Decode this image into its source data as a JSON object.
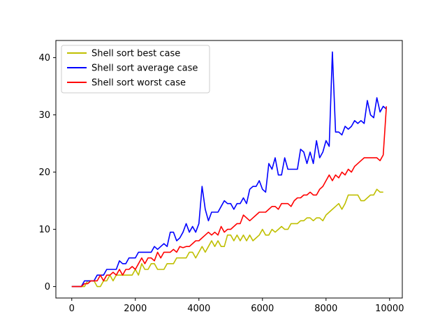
{
  "chart_data": {
    "type": "line",
    "title": "",
    "xlabel": "",
    "ylabel": "",
    "xlim": [
      -500,
      10400
    ],
    "ylim": [
      -2,
      43
    ],
    "grid": false,
    "legend_position": "top-left",
    "x_ticks": [
      0,
      2000,
      4000,
      6000,
      8000,
      10000
    ],
    "x_tick_labels": [
      "0",
      "2000",
      "4000",
      "6000",
      "8000",
      "10000"
    ],
    "y_ticks": [
      0,
      10,
      20,
      30,
      40
    ],
    "y_tick_labels": [
      "0",
      "10",
      "20",
      "30",
      "40"
    ],
    "series": [
      {
        "name": "Shell sort best case",
        "color": "#bfbf00",
        "points": [
          [
            0,
            0
          ],
          [
            400,
            0
          ],
          [
            500,
            1
          ],
          [
            700,
            1
          ],
          [
            800,
            0
          ],
          [
            900,
            0
          ],
          [
            1000,
            1
          ],
          [
            1100,
            1
          ],
          [
            1200,
            2
          ],
          [
            1300,
            1
          ],
          [
            1400,
            2
          ],
          [
            1900,
            2
          ],
          [
            2000,
            3
          ],
          [
            2100,
            2
          ],
          [
            2200,
            4
          ],
          [
            2300,
            3
          ],
          [
            2400,
            3
          ],
          [
            2500,
            4
          ],
          [
            2600,
            4
          ],
          [
            2700,
            3
          ],
          [
            2900,
            3
          ],
          [
            3000,
            4
          ],
          [
            3200,
            4
          ],
          [
            3300,
            5
          ],
          [
            3600,
            5
          ],
          [
            3700,
            6
          ],
          [
            3800,
            6
          ],
          [
            3900,
            5
          ],
          [
            4000,
            6
          ],
          [
            4100,
            7
          ],
          [
            4200,
            6
          ],
          [
            4300,
            7
          ],
          [
            4400,
            8
          ],
          [
            4500,
            7
          ],
          [
            4600,
            8
          ],
          [
            4700,
            7
          ],
          [
            4800,
            7
          ],
          [
            4900,
            9
          ],
          [
            5000,
            9
          ],
          [
            5100,
            8
          ],
          [
            5200,
            9
          ],
          [
            5300,
            8
          ],
          [
            5400,
            9
          ],
          [
            5500,
            8
          ],
          [
            5600,
            9
          ],
          [
            5700,
            8
          ],
          [
            5800,
            8.5
          ],
          [
            5900,
            9
          ],
          [
            6000,
            10
          ],
          [
            6100,
            9
          ],
          [
            6200,
            9
          ],
          [
            6300,
            10
          ],
          [
            6400,
            9.5
          ],
          [
            6500,
            10
          ],
          [
            6600,
            10.5
          ],
          [
            6700,
            10
          ],
          [
            6800,
            10
          ],
          [
            6900,
            11
          ],
          [
            7000,
            11
          ],
          [
            7100,
            11
          ],
          [
            7200,
            11.5
          ],
          [
            7300,
            11.5
          ],
          [
            7400,
            12
          ],
          [
            7500,
            12
          ],
          [
            7600,
            11.5
          ],
          [
            7700,
            12
          ],
          [
            7800,
            12
          ],
          [
            7900,
            11.5
          ],
          [
            8000,
            12.5
          ],
          [
            8100,
            13
          ],
          [
            8200,
            13.5
          ],
          [
            8300,
            14
          ],
          [
            8400,
            14.5
          ],
          [
            8500,
            13.5
          ],
          [
            8600,
            14.5
          ],
          [
            8700,
            16
          ],
          [
            8800,
            16
          ],
          [
            9000,
            16
          ],
          [
            9100,
            15
          ],
          [
            9200,
            15
          ],
          [
            9300,
            15.5
          ],
          [
            9400,
            16
          ],
          [
            9500,
            16
          ],
          [
            9600,
            17
          ],
          [
            9700,
            16.5
          ],
          [
            9800,
            16.5
          ]
        ]
      },
      {
        "name": "Shell sort average case",
        "color": "#0000ff",
        "points": [
          [
            0,
            0
          ],
          [
            300,
            0
          ],
          [
            400,
            1
          ],
          [
            700,
            1
          ],
          [
            800,
            2
          ],
          [
            900,
            2
          ],
          [
            1000,
            2
          ],
          [
            1100,
            3
          ],
          [
            1300,
            3
          ],
          [
            1400,
            3
          ],
          [
            1500,
            4.5
          ],
          [
            1600,
            4
          ],
          [
            1700,
            4
          ],
          [
            1800,
            5
          ],
          [
            2000,
            5
          ],
          [
            2100,
            6
          ],
          [
            2200,
            6
          ],
          [
            2300,
            6
          ],
          [
            2500,
            6
          ],
          [
            2600,
            7
          ],
          [
            2700,
            6.5
          ],
          [
            2800,
            7
          ],
          [
            2900,
            7.5
          ],
          [
            3000,
            7
          ],
          [
            3100,
            9.5
          ],
          [
            3200,
            9.5
          ],
          [
            3300,
            8
          ],
          [
            3400,
            8.5
          ],
          [
            3500,
            9.5
          ],
          [
            3600,
            11
          ],
          [
            3700,
            9.5
          ],
          [
            3800,
            10.5
          ],
          [
            3900,
            9.5
          ],
          [
            4000,
            11
          ],
          [
            4100,
            17.5
          ],
          [
            4200,
            13.5
          ],
          [
            4300,
            11.5
          ],
          [
            4400,
            13
          ],
          [
            4600,
            13
          ],
          [
            4700,
            14
          ],
          [
            4800,
            15
          ],
          [
            4900,
            14.5
          ],
          [
            5000,
            14.5
          ],
          [
            5100,
            13.5
          ],
          [
            5200,
            14.5
          ],
          [
            5300,
            14.5
          ],
          [
            5400,
            15.5
          ],
          [
            5500,
            14.5
          ],
          [
            5600,
            17
          ],
          [
            5700,
            17.5
          ],
          [
            5800,
            17.5
          ],
          [
            5900,
            18.5
          ],
          [
            6000,
            17
          ],
          [
            6100,
            16.5
          ],
          [
            6200,
            21.5
          ],
          [
            6300,
            20.5
          ],
          [
            6400,
            22.5
          ],
          [
            6500,
            19.5
          ],
          [
            6600,
            19.5
          ],
          [
            6700,
            22.5
          ],
          [
            6800,
            20.5
          ],
          [
            6900,
            20.5
          ],
          [
            7000,
            20.5
          ],
          [
            7100,
            20.5
          ],
          [
            7200,
            24
          ],
          [
            7300,
            23.5
          ],
          [
            7400,
            21.5
          ],
          [
            7500,
            23.5
          ],
          [
            7600,
            21.5
          ],
          [
            7700,
            25.5
          ],
          [
            7800,
            22.5
          ],
          [
            7900,
            23.5
          ],
          [
            8000,
            25.5
          ],
          [
            8100,
            24.5
          ],
          [
            8200,
            41
          ],
          [
            8300,
            27
          ],
          [
            8400,
            27
          ],
          [
            8500,
            26.5
          ],
          [
            8600,
            28
          ],
          [
            8700,
            27.5
          ],
          [
            8800,
            28
          ],
          [
            8900,
            29
          ],
          [
            9000,
            28.5
          ],
          [
            9100,
            29
          ],
          [
            9200,
            28.5
          ],
          [
            9300,
            32.5
          ],
          [
            9400,
            30
          ],
          [
            9500,
            29.5
          ],
          [
            9600,
            33
          ],
          [
            9700,
            30.5
          ],
          [
            9800,
            31.5
          ],
          [
            9900,
            31
          ]
        ]
      },
      {
        "name": "Shell sort worst case",
        "color": "#ff0000",
        "points": [
          [
            0,
            0
          ],
          [
            300,
            0
          ],
          [
            400,
            0.5
          ],
          [
            500,
            0.5
          ],
          [
            600,
            1
          ],
          [
            700,
            1
          ],
          [
            800,
            1
          ],
          [
            900,
            2
          ],
          [
            1000,
            1
          ],
          [
            1100,
            2
          ],
          [
            1200,
            2
          ],
          [
            1300,
            2.5
          ],
          [
            1400,
            2
          ],
          [
            1500,
            3
          ],
          [
            1600,
            2
          ],
          [
            1700,
            3
          ],
          [
            1800,
            3
          ],
          [
            1900,
            3.5
          ],
          [
            2000,
            3
          ],
          [
            2100,
            4
          ],
          [
            2200,
            5
          ],
          [
            2300,
            4
          ],
          [
            2400,
            5
          ],
          [
            2500,
            5
          ],
          [
            2600,
            4.5
          ],
          [
            2700,
            6
          ],
          [
            2800,
            5
          ],
          [
            2900,
            6
          ],
          [
            3000,
            6
          ],
          [
            3100,
            6
          ],
          [
            3200,
            6.5
          ],
          [
            3300,
            6
          ],
          [
            3400,
            7
          ],
          [
            3500,
            6.8
          ],
          [
            3600,
            7
          ],
          [
            3700,
            7
          ],
          [
            3800,
            7.5
          ],
          [
            3900,
            8
          ],
          [
            4000,
            8
          ],
          [
            4100,
            8.5
          ],
          [
            4200,
            9
          ],
          [
            4300,
            9.5
          ],
          [
            4400,
            9
          ],
          [
            4500,
            9.5
          ],
          [
            4600,
            9
          ],
          [
            4700,
            10.5
          ],
          [
            4800,
            9.5
          ],
          [
            4900,
            10
          ],
          [
            5000,
            10
          ],
          [
            5100,
            10.5
          ],
          [
            5200,
            11
          ],
          [
            5300,
            11
          ],
          [
            5400,
            12.5
          ],
          [
            5500,
            12
          ],
          [
            5600,
            11.5
          ],
          [
            5700,
            12
          ],
          [
            5800,
            12.5
          ],
          [
            5900,
            13
          ],
          [
            6000,
            13
          ],
          [
            6100,
            13
          ],
          [
            6200,
            13.5
          ],
          [
            6300,
            14
          ],
          [
            6400,
            14
          ],
          [
            6500,
            13.5
          ],
          [
            6600,
            14.5
          ],
          [
            6700,
            14.5
          ],
          [
            6800,
            14.5
          ],
          [
            6900,
            14
          ],
          [
            7000,
            15
          ],
          [
            7100,
            15.5
          ],
          [
            7200,
            15.5
          ],
          [
            7300,
            16
          ],
          [
            7400,
            16
          ],
          [
            7500,
            16.5
          ],
          [
            7600,
            16
          ],
          [
            7700,
            16
          ],
          [
            7800,
            17
          ],
          [
            7900,
            17.5
          ],
          [
            8000,
            18.5
          ],
          [
            8100,
            19.5
          ],
          [
            8200,
            18.5
          ],
          [
            8300,
            19.5
          ],
          [
            8400,
            19
          ],
          [
            8500,
            20
          ],
          [
            8600,
            19.5
          ],
          [
            8700,
            20.5
          ],
          [
            8800,
            20
          ],
          [
            8900,
            21
          ],
          [
            9000,
            21.5
          ],
          [
            9100,
            22
          ],
          [
            9200,
            22.5
          ],
          [
            9300,
            22.5
          ],
          [
            9400,
            22.5
          ],
          [
            9500,
            22.5
          ],
          [
            9600,
            22.5
          ],
          [
            9700,
            22
          ],
          [
            9800,
            23
          ],
          [
            9900,
            31.5
          ]
        ]
      }
    ]
  }
}
